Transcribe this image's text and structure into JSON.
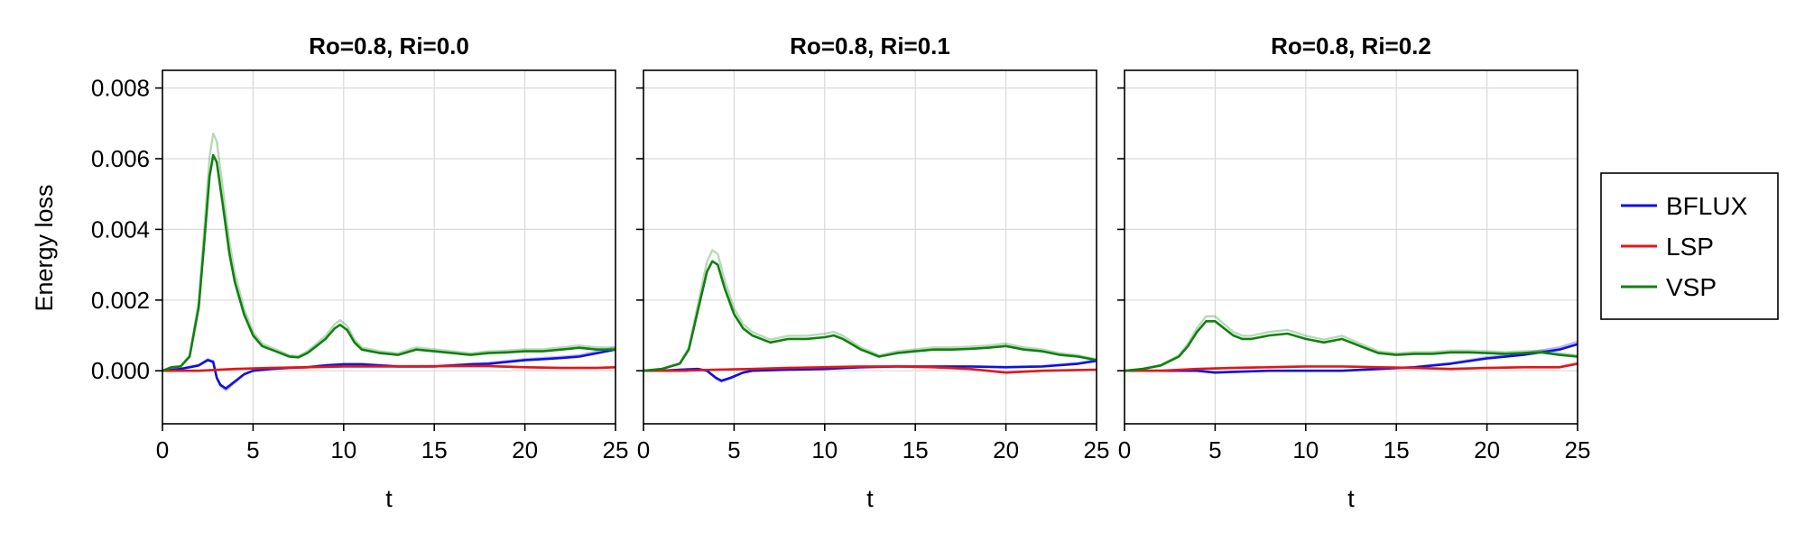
{
  "chart_data": {
    "type": "line",
    "ylabel": "Energy loss",
    "ylim": [
      -0.0015,
      0.0085
    ],
    "yticks": [
      0.0,
      0.002,
      0.004,
      0.006,
      0.008
    ],
    "ytick_labels": [
      "0.000",
      "0.002",
      "0.004",
      "0.006",
      "0.008"
    ],
    "xlim": [
      0,
      25
    ],
    "xticks": [
      0,
      5,
      10,
      15,
      20,
      25
    ],
    "grid": true,
    "legend": {
      "placement": "right",
      "entries": [
        "BFLUX",
        "LSP",
        "VSP"
      ]
    },
    "colors": {
      "BFLUX": "#1010e0",
      "LSP": "#e01818",
      "VSP": "#108010"
    },
    "panels": [
      {
        "title": "Ro=0.8, Ri=0.0",
        "xlabel": "t",
        "series": [
          {
            "name": "BFLUX",
            "x": [
              0,
              1,
              2,
              2.5,
              2.8,
              3.0,
              3.2,
              3.5,
              4,
              4.5,
              5,
              6,
              7,
              8,
              9,
              10,
              11,
              12,
              13,
              14,
              15,
              16,
              17,
              18,
              19,
              20,
              21,
              22,
              23,
              24,
              25
            ],
            "y": [
              0.0,
              5e-05,
              0.00015,
              0.0003,
              0.00025,
              -0.0002,
              -0.0004,
              -0.0005,
              -0.0003,
              -0.0001,
              0.0,
              5e-05,
              8e-05,
              0.0001,
              0.00015,
              0.00018,
              0.00018,
              0.00015,
              0.00012,
              0.00012,
              0.00012,
              0.00015,
              0.00018,
              0.0002,
              0.00025,
              0.0003,
              0.00033,
              0.00036,
              0.0004,
              0.0005,
              0.0006
            ]
          },
          {
            "name": "LSP",
            "x": [
              0,
              2,
              4,
              6,
              8,
              10,
              12,
              14,
              16,
              18,
              20,
              22,
              24,
              25
            ],
            "y": [
              0.0,
              0.0,
              5e-05,
              8e-05,
              0.0001,
              0.00012,
              0.00012,
              0.00012,
              0.00013,
              0.00013,
              0.0001,
              8e-05,
              8e-05,
              0.0001
            ]
          },
          {
            "name": "VSP",
            "x": [
              0,
              0.5,
              1,
              1.5,
              2,
              2.3,
              2.6,
              2.8,
              3.0,
              3.3,
              3.7,
              4,
              4.5,
              5,
              5.5,
              6,
              6.5,
              7,
              7.5,
              8,
              8.5,
              9,
              9.5,
              9.8,
              10.2,
              10.6,
              11,
              12,
              13,
              14,
              15,
              16,
              17,
              18,
              19,
              20,
              21,
              22,
              23,
              24,
              25
            ],
            "y": [
              0.0,
              0.0001,
              0.00012,
              0.0004,
              0.0018,
              0.0036,
              0.0055,
              0.0061,
              0.0059,
              0.0048,
              0.0033,
              0.0025,
              0.0016,
              0.001,
              0.0007,
              0.0006,
              0.0005,
              0.0004,
              0.00038,
              0.0005,
              0.0007,
              0.0009,
              0.0012,
              0.0013,
              0.00115,
              0.0008,
              0.0006,
              0.0005,
              0.00045,
              0.0006,
              0.00055,
              0.0005,
              0.00045,
              0.0005,
              0.00052,
              0.00055,
              0.00055,
              0.0006,
              0.00065,
              0.0006,
              0.0006
            ]
          }
        ]
      },
      {
        "title": "Ro=0.8, Ri=0.1",
        "xlabel": "t",
        "series": [
          {
            "name": "BFLUX",
            "x": [
              0,
              1,
              2,
              3,
              3.5,
              4,
              4.3,
              4.8,
              5.5,
              6,
              8,
              10,
              12,
              14,
              16,
              18,
              20,
              22,
              24,
              25
            ],
            "y": [
              0.0,
              0.0,
              3e-05,
              5e-05,
              0.0,
              -0.0002,
              -0.00028,
              -0.0002,
              -5e-05,
              0.0,
              3e-05,
              5e-05,
              0.0001,
              0.00012,
              0.00012,
              0.00012,
              0.0001,
              0.00012,
              0.0002,
              0.00028
            ]
          },
          {
            "name": "LSP",
            "x": [
              0,
              2,
              4,
              6,
              8,
              10,
              12,
              14,
              16,
              18,
              19,
              20,
              22,
              24,
              25
            ],
            "y": [
              0.0,
              0.0,
              3e-05,
              5e-05,
              8e-05,
              0.0001,
              0.00012,
              0.00012,
              0.0001,
              5e-05,
              0.0,
              -5e-05,
              0.0,
              2e-05,
              3e-05
            ]
          },
          {
            "name": "VSP",
            "x": [
              0,
              1,
              2,
              2.5,
              3,
              3.5,
              3.8,
              4.1,
              4.5,
              5,
              5.5,
              6,
              7,
              8,
              9,
              10,
              10.5,
              11,
              12,
              13,
              14,
              15,
              16,
              17,
              18,
              19,
              20,
              21,
              22,
              23,
              24,
              25
            ],
            "y": [
              0.0,
              5e-05,
              0.0002,
              0.0006,
              0.0017,
              0.0028,
              0.0031,
              0.003,
              0.0023,
              0.0016,
              0.0012,
              0.001,
              0.0008,
              0.0009,
              0.0009,
              0.00095,
              0.001,
              0.0009,
              0.0006,
              0.0004,
              0.0005,
              0.00055,
              0.0006,
              0.0006,
              0.00062,
              0.00065,
              0.0007,
              0.0006,
              0.00055,
              0.00045,
              0.0004,
              0.0003
            ]
          }
        ]
      },
      {
        "title": "Ro=0.8, Ri=0.2",
        "xlabel": "t",
        "series": [
          {
            "name": "BFLUX",
            "x": [
              0,
              2,
              4,
              5,
              6,
              8,
              10,
              12,
              14,
              16,
              18,
              20,
              22,
              24,
              25
            ],
            "y": [
              0.0,
              0.0,
              0.0,
              -5e-05,
              -3e-05,
              0.0,
              0.0,
              0.0,
              5e-05,
              0.0001,
              0.0002,
              0.00035,
              0.00045,
              0.0006,
              0.00075
            ]
          },
          {
            "name": "LSP",
            "x": [
              0,
              2,
              4,
              6,
              8,
              10,
              12,
              14,
              16,
              18,
              20,
              22,
              24,
              25
            ],
            "y": [
              0.0,
              0.0,
              5e-05,
              8e-05,
              0.0001,
              0.00012,
              0.00012,
              0.0001,
              8e-05,
              5e-05,
              8e-05,
              0.0001,
              0.0001,
              0.0002
            ]
          },
          {
            "name": "VSP",
            "x": [
              0,
              1,
              2,
              3,
              3.5,
              4,
              4.5,
              5,
              5.5,
              6,
              6.5,
              7,
              8,
              9,
              10,
              11,
              12,
              13,
              14,
              15,
              16,
              17,
              18,
              19,
              20,
              21,
              22,
              23,
              24,
              25
            ],
            "y": [
              0.0,
              5e-05,
              0.00015,
              0.0004,
              0.0007,
              0.0011,
              0.0014,
              0.0014,
              0.0012,
              0.001,
              0.0009,
              0.0009,
              0.001,
              0.00105,
              0.0009,
              0.0008,
              0.0009,
              0.0007,
              0.0005,
              0.00045,
              0.00048,
              0.00048,
              0.00052,
              0.00052,
              0.0005,
              0.00048,
              0.0005,
              0.00052,
              0.00045,
              0.0004
            ]
          }
        ]
      }
    ]
  }
}
